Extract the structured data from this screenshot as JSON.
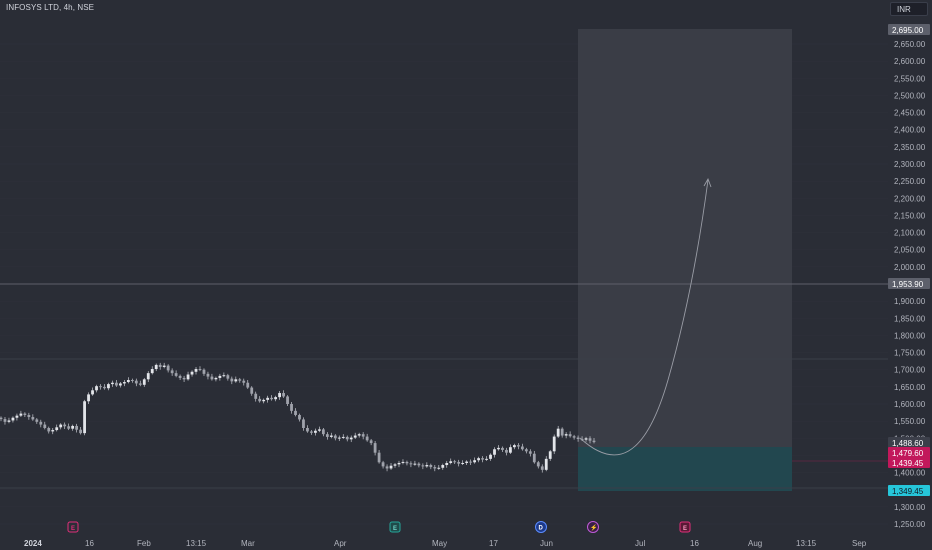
{
  "header": {
    "symbol_title": "INFOSYS LTD, 4h, NSE",
    "currency": "INR"
  },
  "colors": {
    "background": "#2a2d36",
    "target_zone": "#3a3d46",
    "stop_zone": "#22474f",
    "candle": "#c7c9d0",
    "resistance_line": "#5d606b",
    "entry_tag": "#c2185b",
    "stop_tag": "#26c6da",
    "high_tag": "#5d606b"
  },
  "icons": {
    "earnings": "earnings-icon",
    "dividend": "dividend-icon",
    "split": "lightning-icon"
  },
  "price_axis": {
    "ticks": [
      "2,650.00",
      "2,600.00",
      "2,550.00",
      "2,500.00",
      "2,450.00",
      "2,400.00",
      "2,350.00",
      "2,300.00",
      "2,250.00",
      "2,200.00",
      "2,150.00",
      "2,100.00",
      "2,050.00",
      "2,000.00",
      "1,950.00",
      "1,900.00",
      "1,850.00",
      "1,800.00",
      "1,750.00",
      "1,700.00",
      "1,650.00",
      "1,600.00",
      "1,550.00",
      "1,500.00",
      "1,450.00",
      "1,400.00",
      "1,350.00",
      "1,300.00",
      "1,250.00"
    ],
    "tags": {
      "target": "2,695.00",
      "resistance": "1,953.90",
      "last": "1,488.60",
      "entry": "1,479.60",
      "entry_low": "1,439.45",
      "stop": "1,349.45"
    }
  },
  "time_axis": {
    "labels": [
      "2024",
      "16",
      "Feb",
      "13:15",
      "Mar",
      "Apr",
      "May",
      "17",
      "Jun",
      "Jul",
      "16",
      "Aug",
      "13:15",
      "Sep"
    ]
  },
  "events": [
    {
      "kind": "earnings",
      "letter": "E"
    },
    {
      "kind": "earnings",
      "letter": "E"
    },
    {
      "kind": "dividend",
      "letter": "D"
    },
    {
      "kind": "split",
      "letter": "⚡"
    },
    {
      "kind": "earnings",
      "letter": "E"
    }
  ],
  "chart_data": {
    "type": "candlestick",
    "title": "INFOSYS LTD, 4h, NSE",
    "ylim": [
      1225,
      2725
    ],
    "price_close": [
      1556,
      1548,
      1552,
      1560,
      1566,
      1572,
      1568,
      1562,
      1555,
      1548,
      1540,
      1530,
      1520,
      1524,
      1532,
      1540,
      1535,
      1528,
      1536,
      1525,
      1515,
      1608,
      1628,
      1640,
      1652,
      1650,
      1646,
      1658,
      1662,
      1654,
      1660,
      1664,
      1670,
      1668,
      1660,
      1656,
      1672,
      1690,
      1702,
      1714,
      1708,
      1712,
      1698,
      1690,
      1682,
      1676,
      1672,
      1686,
      1694,
      1702,
      1700,
      1688,
      1680,
      1672,
      1676,
      1682,
      1684,
      1674,
      1666,
      1672,
      1668,
      1662,
      1648,
      1630,
      1615,
      1608,
      1612,
      1618,
      1614,
      1620,
      1632,
      1622,
      1600,
      1580,
      1568,
      1555,
      1530,
      1520,
      1516,
      1522,
      1526,
      1512,
      1504,
      1508,
      1500,
      1502,
      1504,
      1497,
      1502,
      1508,
      1512,
      1505,
      1494,
      1486,
      1458,
      1430,
      1418,
      1412,
      1420,
      1424,
      1428,
      1431,
      1427,
      1424,
      1426,
      1421,
      1418,
      1422,
      1416,
      1412,
      1414,
      1422,
      1428,
      1433,
      1431,
      1426,
      1428,
      1432,
      1430,
      1436,
      1442,
      1438,
      1440,
      1452,
      1468,
      1472,
      1466,
      1458,
      1474,
      1480,
      1476,
      1468,
      1462,
      1455,
      1430,
      1418,
      1408,
      1440,
      1462,
      1505,
      1528,
      1508,
      1512,
      1506,
      1502,
      1498,
      1496,
      1500,
      1493,
      1489
    ],
    "annotations": [
      "Long position: entry 1,479.60, target 2,695.00, stop 1,349.45",
      "Horizontal line 1,953.90",
      "Projected path to ~2,260"
    ]
  }
}
